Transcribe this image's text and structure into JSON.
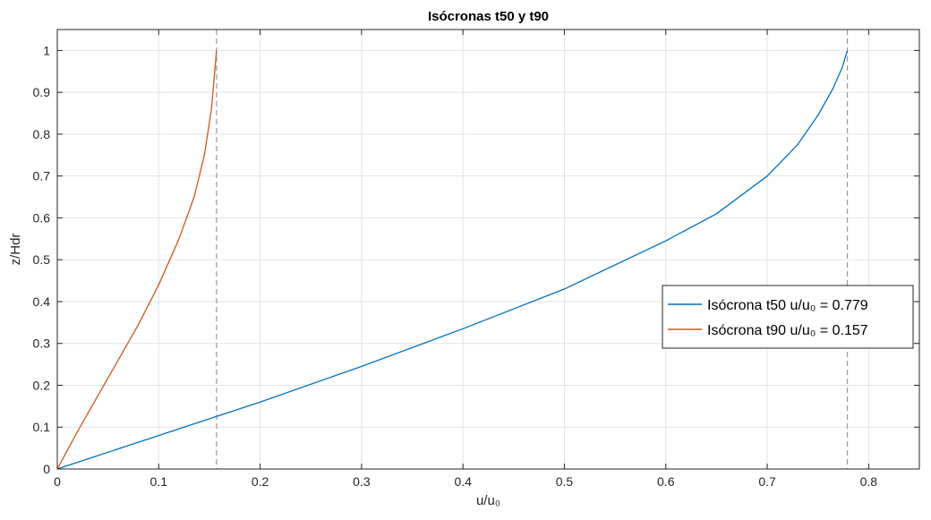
{
  "chart_data": {
    "type": "line",
    "title": "Isócronas t50 y t90",
    "xlabel": "u/u₀",
    "ylabel": "z/Hdr",
    "xlim": [
      0,
      0.85
    ],
    "ylim": [
      0,
      1.05
    ],
    "x_ticks": [
      0,
      0.1,
      0.2,
      0.3,
      0.4,
      0.5,
      0.6,
      0.7,
      0.8
    ],
    "x_tick_labels": [
      "0",
      "0.1",
      "0.2",
      "0.3",
      "0.4",
      "0.5",
      "0.6",
      "0.7",
      "0.8"
    ],
    "y_ticks": [
      0,
      0.1,
      0.2,
      0.3,
      0.4,
      0.5,
      0.6,
      0.7,
      0.8,
      0.9,
      1
    ],
    "y_tick_labels": [
      "0",
      "0.1",
      "0.2",
      "0.3",
      "0.4",
      "0.5",
      "0.6",
      "0.7",
      "0.8",
      "0.9",
      "1"
    ],
    "grid": true,
    "legend_position": "right",
    "series": [
      {
        "name": "Isócrona t50 u/u₀ = 0.779",
        "color": "#0072BD",
        "x": [
          0,
          0.1,
          0.2,
          0.3,
          0.4,
          0.5,
          0.6,
          0.65,
          0.7,
          0.73,
          0.75,
          0.765,
          0.774,
          0.779
        ],
        "y": [
          0,
          0.08,
          0.16,
          0.245,
          0.335,
          0.43,
          0.545,
          0.61,
          0.7,
          0.775,
          0.845,
          0.91,
          0.96,
          1.0
        ]
      },
      {
        "name": "Isócrona t90 u/u₀ = 0.157",
        "color": "#D95319",
        "x": [
          0,
          0.02,
          0.04,
          0.06,
          0.08,
          0.1,
          0.12,
          0.135,
          0.145,
          0.152,
          0.157
        ],
        "y": [
          0,
          0.09,
          0.175,
          0.26,
          0.345,
          0.44,
          0.55,
          0.65,
          0.75,
          0.86,
          1.0
        ]
      }
    ],
    "reference_lines": [
      {
        "x": 0.157,
        "style": "dashed",
        "color": "#999999"
      },
      {
        "x": 0.779,
        "style": "dashed",
        "color": "#999999"
      }
    ]
  }
}
